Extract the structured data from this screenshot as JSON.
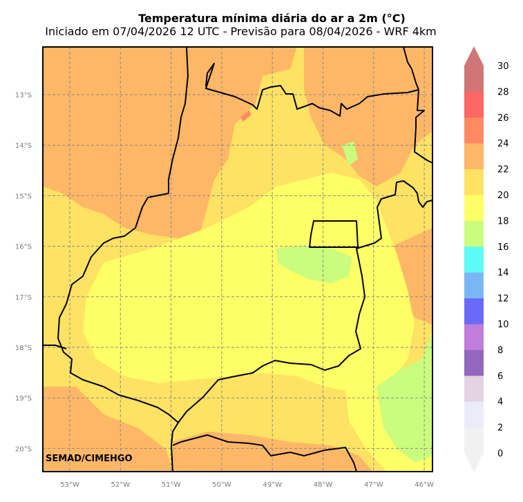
{
  "title": "Temperatura mínima diária do ar a 2m (°C)",
  "subtitle": "Iniciado em 07/04/2026 12 UTC - Previsão para 08/04/2026 - WRF 4km",
  "credit": "SEMAD/CIMEHGO",
  "map": {
    "lat_ticks": [
      "13°S",
      "14°S",
      "15°S",
      "16°S",
      "17°S",
      "18°S",
      "19°S",
      "20°S"
    ],
    "lon_ticks": [
      "53°W",
      "52°W",
      "51°W",
      "50°W",
      "49°W",
      "48°W",
      "47°W",
      "46°W"
    ],
    "grid": true
  },
  "colorbar": {
    "labels": [
      "0",
      "2",
      "4",
      "6",
      "8",
      "10",
      "12",
      "14",
      "16",
      "18",
      "20",
      "22",
      "24",
      "26",
      "28",
      "30"
    ],
    "colors": [
      "#f1f1f1",
      "#ececf8",
      "#e3d3e3",
      "#9467bd",
      "#c07ddb",
      "#6b69f8",
      "#7bb6f4",
      "#5cfbf6",
      "#cafc7e",
      "#ffff66",
      "#fee263",
      "#feb767",
      "#ff8a61",
      "#ff6666",
      "#d17676",
      "#d17676"
    ],
    "extend": "both"
  },
  "fields": {
    "background_color": "#fee263",
    "warm_color": "#feb767",
    "mild_color": "#ffff66",
    "cool_color": "#cafc7e",
    "hot_color": "#ff8a61"
  }
}
